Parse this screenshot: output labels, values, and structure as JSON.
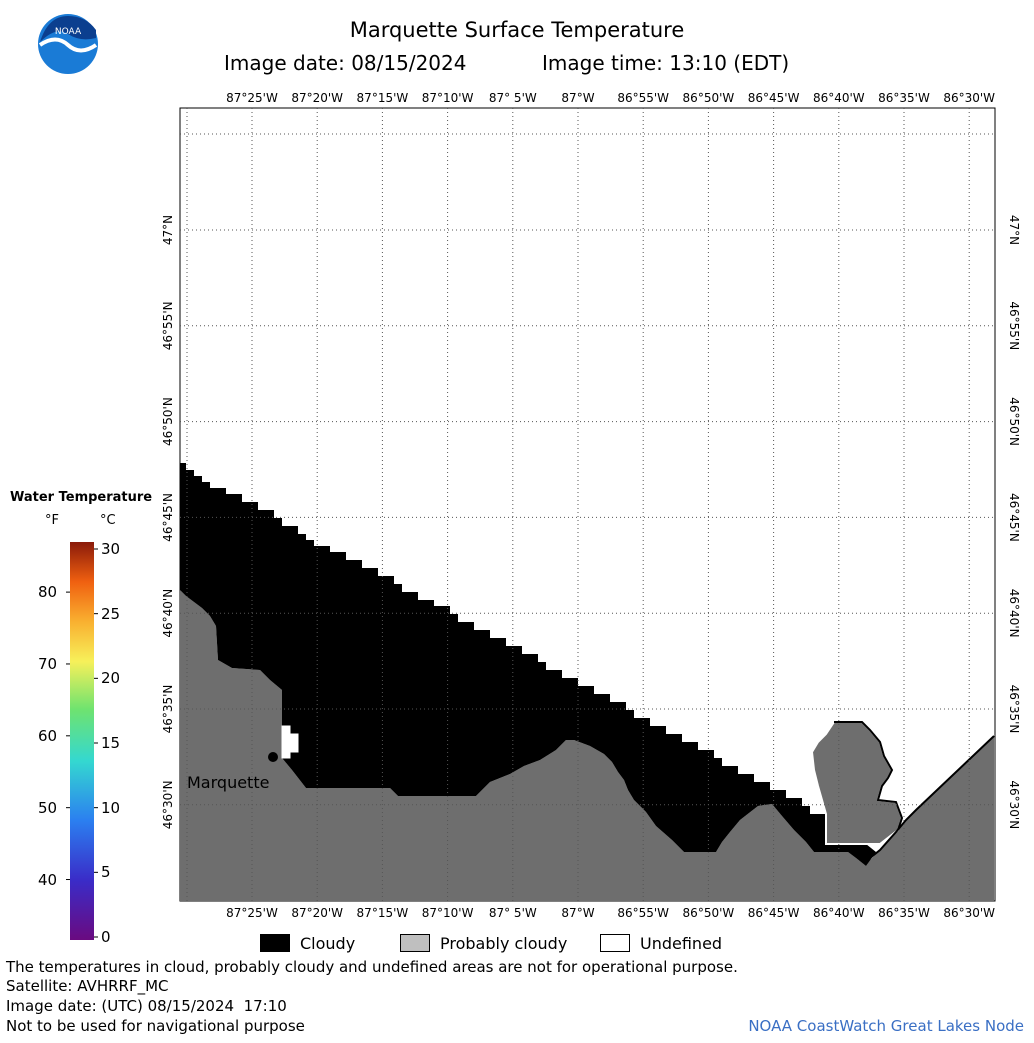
{
  "title": "Marquette Surface Temperature",
  "image_date_label": "Image date: 08/15/2024",
  "image_time_label": "Image time: 13:10 (EDT)",
  "logo_text": "NOAA",
  "longitude_labels": [
    "87°25'W",
    "87°20'W",
    "87°15'W",
    "87°10'W",
    "87° 5'W",
    "87°W",
    "86°55'W",
    "86°50'W",
    "86°45'W",
    "86°40'W",
    "86°35'W",
    "86°30'W"
  ],
  "latitude_labels": [
    "47°N",
    "46°55'N",
    "46°50'N",
    "46°45'N",
    "46°40'N",
    "46°35'N",
    "46°30'N"
  ],
  "city_label": "Marquette",
  "legend": {
    "title": "Water Temperature",
    "unit_f": "°F",
    "unit_c": "°C",
    "fahrenheit_ticks": [
      "80",
      "70",
      "60",
      "50",
      "40"
    ],
    "celsius_ticks": [
      "30",
      "25",
      "20",
      "15",
      "10",
      "5",
      "0"
    ]
  },
  "key": {
    "cloudy": "Cloudy",
    "probably_cloudy": "Probably cloudy",
    "undefined": "Undefined"
  },
  "colors": {
    "cloudy": "#000000",
    "probably_cloudy": "#bfbfbf",
    "land": "#6e6e6e",
    "credit": "#3a6fc4"
  },
  "footer": {
    "disclaimer": "The temperatures in cloud, probably cloudy and undefined areas are not for operational purpose.",
    "satellite": "Satellite: AVHRRF_MC",
    "utc_date": "Image date: (UTC) 08/15/2024  17:10",
    "navigation": "Not to be used for navigational purpose",
    "credit": "NOAA CoastWatch Great Lakes Node"
  }
}
